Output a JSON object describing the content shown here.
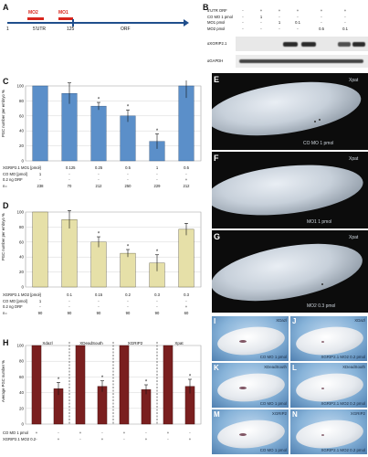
{
  "panel_a": {
    "letter": "A",
    "mo2": "MO2",
    "mo1": "MO1",
    "pos1": "1",
    "utr": "5'UTR",
    "pos125": "125",
    "orf": "ORF",
    "colors": {
      "mo": "#d9251c",
      "line": "#1f4e8c"
    }
  },
  "panel_b": {
    "letter": "B",
    "rows": [
      {
        "label": "5'UTR ORF",
        "values": [
          "-",
          "+",
          "+",
          "+",
          "+",
          "+"
        ]
      },
      {
        "label": "CO MO 1 pmol",
        "values": [
          "-",
          "1",
          "-",
          "-",
          "-",
          "-"
        ]
      },
      {
        "label": "MO1 pmol",
        "values": [
          "-",
          "-",
          "1",
          "0.1",
          "-",
          "-"
        ]
      },
      {
        "label": "MO2 pmol",
        "values": [
          "-",
          "-",
          "-",
          "-",
          "0.5",
          "0.1"
        ]
      }
    ],
    "blots": [
      "αXGRIP2.1",
      "αGAPDH"
    ]
  },
  "panel_c": {
    "letter": "C",
    "ylabel": "PGC number per embryo %",
    "row_labels": [
      "XGRIP2.1 MO1 [pmol]",
      "CO MO [pmol]",
      "0.2 ng ORF",
      "n="
    ],
    "rows": [
      [
        "-",
        "0.125",
        "0.25",
        "0.5",
        "1",
        "0.5"
      ],
      [
        "1",
        "-",
        "-",
        "-",
        "-",
        "-"
      ],
      [
        "-",
        "-",
        "-",
        "-",
        "-",
        "+"
      ],
      [
        "238",
        "70",
        "212",
        "250",
        "229",
        "212"
      ]
    ]
  },
  "panel_d": {
    "letter": "D",
    "ylabel": "PGC number per embryo %",
    "row_labels": [
      "XGRIP2.1 MO2 [pmol]",
      "CO MO [pmol]",
      "0.2 ng ORF",
      "n="
    ],
    "rows": [
      [
        "-",
        "0.1",
        "0.15",
        "0.2",
        "0.3",
        "0.3"
      ],
      [
        "1",
        "-",
        "-",
        "-",
        "-",
        "-"
      ],
      [
        "-",
        "-",
        "-",
        "-",
        "-",
        "+"
      ],
      [
        "90",
        "90",
        "90",
        "90",
        "90",
        "60"
      ]
    ]
  },
  "panel_h": {
    "letter": "H",
    "ylabel": "Average PGC number %",
    "groups": [
      "Xdazl",
      "XDeadSouth",
      "XGRIP2",
      "Xpat"
    ],
    "row_labels": [
      "CO MO 1 pmol",
      "XGRIP2.1 MO2 0.2"
    ],
    "rows": [
      [
        "+",
        "-",
        "+",
        "-",
        "+",
        "-",
        "+",
        "-"
      ],
      [
        "-",
        "+",
        "-",
        "+",
        "-",
        "+",
        "-",
        "+"
      ]
    ]
  },
  "embryos": {
    "E": {
      "letter": "E",
      "probe": "Xpat",
      "treatment": "CO MO 1 pmol"
    },
    "F": {
      "letter": "F",
      "probe": "Xpat",
      "treatment": "MO1 1 pmol"
    },
    "G": {
      "letter": "G",
      "probe": "Xpat",
      "treatment": "MO2 0.3 pmol"
    }
  },
  "wm": {
    "I": {
      "letter": "I",
      "probe": "XDazl",
      "treatment": "CO MO 1 pmol"
    },
    "J": {
      "letter": "J",
      "probe": "XDazl",
      "treatment": "XGRIP2.1 MO2 0.2 pmol"
    },
    "K": {
      "letter": "K",
      "probe": "XDeadSouth",
      "treatment": "CO MO 1 pmol"
    },
    "L": {
      "letter": "L",
      "probe": "XDeadSouth",
      "treatment": "XGRIP2.1 MO2 0.2 pmol"
    },
    "M": {
      "letter": "M",
      "probe": "XGRIP2",
      "treatment": "CO MO 1 pmol"
    },
    "N": {
      "letter": "N",
      "probe": "XGRIP2",
      "treatment": "XGRIP2.1 MO2 0.2 pmol"
    }
  },
  "chart_data": [
    {
      "type": "bar",
      "panel": "C",
      "ylabel": "PGC number per embryo %",
      "ylim": [
        0,
        100
      ],
      "yticks": [
        0,
        20,
        40,
        60,
        80,
        100
      ],
      "values": [
        100,
        90,
        73,
        60,
        26,
        100
      ],
      "errors": [
        0,
        14,
        5,
        8,
        10,
        16
      ],
      "stars": [
        false,
        false,
        true,
        true,
        true,
        false
      ],
      "color": "#5b8fc9"
    },
    {
      "type": "bar",
      "panel": "D",
      "ylabel": "PGC number per embryo %",
      "ylim": [
        0,
        100
      ],
      "yticks": [
        0,
        20,
        40,
        60,
        80,
        100
      ],
      "values": [
        100,
        90,
        60,
        45,
        32,
        77
      ],
      "errors": [
        0,
        12,
        7,
        5,
        11,
        8
      ],
      "stars": [
        false,
        false,
        true,
        true,
        true,
        false
      ],
      "color": "#e6e0a8"
    },
    {
      "type": "bar",
      "panel": "H",
      "ylabel": "Average PGC number %",
      "ylim": [
        0,
        100
      ],
      "yticks": [
        0,
        20,
        40,
        60,
        80,
        100
      ],
      "values": [
        100,
        45,
        100,
        48,
        100,
        44,
        100,
        48
      ],
      "errors": [
        0,
        8,
        0,
        7,
        0,
        6,
        0,
        9
      ],
      "stars": [
        false,
        true,
        false,
        true,
        false,
        true,
        false,
        true
      ],
      "color": "#7a1f1f"
    }
  ]
}
